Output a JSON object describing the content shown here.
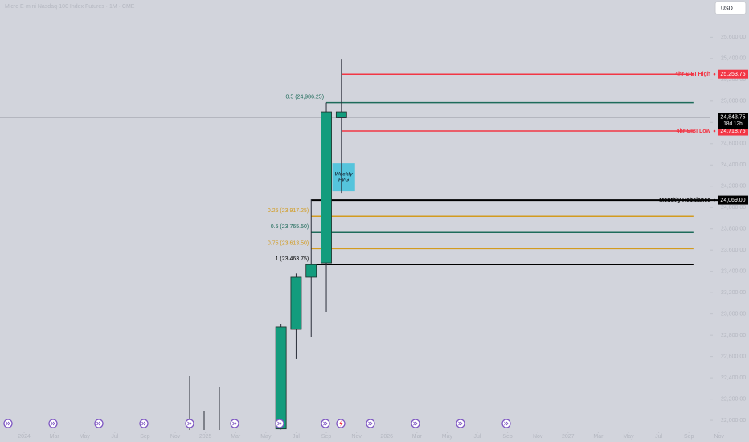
{
  "chart_data": {
    "type": "candlestick",
    "title": "Micro E-mini Nasdaq-100 Index Futures · 1M · CME",
    "currency": "USD",
    "x": [
      17,
      18,
      19,
      20,
      21
    ],
    "open": [
      21920,
      22854,
      23345,
      23480,
      24900
    ],
    "high": [
      22907,
      23380,
      24076,
      24986.25,
      25390
    ],
    "low": [
      21915,
      22575,
      22786,
      23020,
      24137
    ],
    "close": [
      22877,
      23345,
      23463.75,
      24900,
      24843.75
    ],
    "color": "#139c7d",
    "xlim": [
      -1.6,
      47.98
    ],
    "xticks": [
      {
        "value": 0,
        "label": "2024"
      },
      {
        "value": 2,
        "label": "Mar"
      },
      {
        "value": 4,
        "label": "May"
      },
      {
        "value": 6,
        "label": "Jul"
      },
      {
        "value": 8,
        "label": "Sep"
      },
      {
        "value": 10,
        "label": "Nov"
      },
      {
        "value": 12,
        "label": "2025"
      },
      {
        "value": 14,
        "label": "Mar"
      },
      {
        "value": 16,
        "label": "May"
      },
      {
        "value": 18,
        "label": "Jul"
      },
      {
        "value": 20,
        "label": "Sep"
      },
      {
        "value": 22,
        "label": "Nov"
      },
      {
        "value": 24,
        "label": "2026"
      },
      {
        "value": 26,
        "label": "Mar"
      },
      {
        "value": 28,
        "label": "May"
      },
      {
        "value": 30,
        "label": "Jul"
      },
      {
        "value": 32,
        "label": "Sep"
      },
      {
        "value": 34,
        "label": "Nov"
      },
      {
        "value": 36,
        "label": "2027"
      },
      {
        "value": 38,
        "label": "Mar"
      },
      {
        "value": 40,
        "label": "May"
      },
      {
        "value": 42,
        "label": "Jul"
      },
      {
        "value": 44,
        "label": "Sep"
      },
      {
        "value": 46,
        "label": "Nov"
      }
    ],
    "ylim": [
      21910,
      25950
    ],
    "yticks": [
      {
        "value": 22000,
        "label": "22,000.00"
      },
      {
        "value": 22200,
        "label": "22,200.00"
      },
      {
        "value": 22400,
        "label": "22,400.00"
      },
      {
        "value": 22600,
        "label": "22,600.00"
      },
      {
        "value": 22800,
        "label": "22,800.00"
      },
      {
        "value": 23000,
        "label": "23,000.00"
      },
      {
        "value": 23200,
        "label": "23,200.00"
      },
      {
        "value": 23400,
        "label": "23,400.00"
      },
      {
        "value": 23600,
        "label": "23,600.00"
      },
      {
        "value": 23800,
        "label": "23,800.00"
      },
      {
        "value": 24000,
        "label": "24,000.00"
      },
      {
        "value": 24200,
        "label": "24,200.00"
      },
      {
        "value": 24400,
        "label": "24,400.00"
      },
      {
        "value": 24600,
        "label": "24,600.00"
      },
      {
        "value": 24800,
        "label": "24,800.00"
      },
      {
        "value": 25000,
        "label": "25,000.00"
      },
      {
        "value": 25200,
        "label": "25,200.00"
      },
      {
        "value": 25400,
        "label": "25,400.00"
      },
      {
        "value": 25600,
        "label": "25,600.00"
      }
    ],
    "levels": [
      {
        "name": "4hr SIBI High",
        "value": 25253.75,
        "value_label": "25,253.75",
        "color": "#f23645",
        "from": 21,
        "to": 44.3
      },
      {
        "name": "4hr SIBI Low",
        "value": 24718.75,
        "value_label": "24,718.75",
        "color": "#f23645",
        "from": 21,
        "to": 44.3
      },
      {
        "name": "Monthly Rebalance",
        "value": 24069,
        "value_label": "24,069.00",
        "color": "#000000",
        "from": 19,
        "to": 46.2
      }
    ],
    "fib_levels": [
      {
        "label": "0.5 (24,986.25)",
        "value": 24986.25,
        "color": "#1e6b5a",
        "from": 20,
        "to": 44.3
      },
      {
        "label": "0.25 (23,917.25)",
        "value": 23917.25,
        "color": "#d39b1f",
        "from": 19,
        "to": 44.3
      },
      {
        "label": "0.5 (23,765.50)",
        "value": 23765.5,
        "color": "#1e6b5a",
        "from": 19,
        "to": 44.3
      },
      {
        "label": "0.75 (23,613.50)",
        "value": 23613.5,
        "color": "#d39b1f",
        "from": 19,
        "to": 44.3
      },
      {
        "label": "1 (23,463.75)",
        "value": 23463.75,
        "color": "#000000",
        "from": 19,
        "to": 44.3
      }
    ],
    "zone": {
      "label_lines": [
        "Weekly",
        "FVG"
      ],
      "top": 24416,
      "bottom": 24152,
      "from": 20.4,
      "to": 21.9,
      "color": "#3fc1dc"
    },
    "last_price": {
      "value": 24843.75,
      "value_label": "24,843.75",
      "countdown": "18d 12h"
    }
  }
}
